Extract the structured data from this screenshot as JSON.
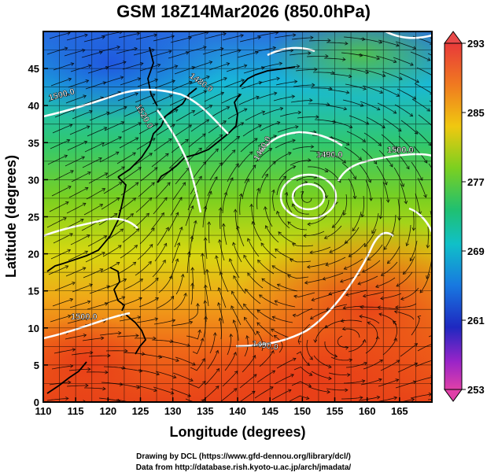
{
  "header": {
    "title": "GSM 18Z14Mar2026 (850.0hPa)"
  },
  "map": {
    "xlabel": "Longitude (degrees)",
    "ylabel": "Latitude  (degrees)",
    "lon_range": [
      110,
      170
    ],
    "lat_range": [
      0,
      50
    ],
    "x_ticks": [
      "110",
      "115",
      "120",
      "125",
      "130",
      "135",
      "140",
      "145",
      "150",
      "155",
      "160",
      "165"
    ],
    "y_ticks": [
      "0",
      "5",
      "10",
      "15",
      "20",
      "25",
      "30",
      "35",
      "40",
      "45"
    ],
    "contour_labels": [
      "1480.0",
      "1500.0",
      "1520.0",
      "1460.0",
      "1490.0",
      "1500.0",
      "1500.0",
      "1490.0"
    ],
    "colorbar": {
      "ticks": [
        "293",
        "285",
        "277",
        "269",
        "261",
        "253"
      ],
      "colors": [
        "#e04040",
        "#f07020",
        "#f0c000",
        "#80d020",
        "#20c060",
        "#10c0c0",
        "#1070e0",
        "#2020c0",
        "#a020c0",
        "#e040a0"
      ]
    }
  },
  "footer": {
    "drawing_credit": "Drawing by DCL (https://www.gfd-dennou.org/library/dcl/)",
    "data_credit": "Data from http://database.rish.kyoto-u.ac.jp/arch/jmadata/"
  }
}
